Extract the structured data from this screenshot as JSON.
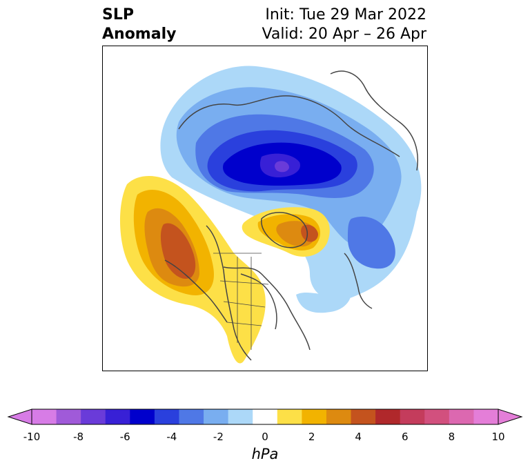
{
  "title": {
    "left_line1": "SLP",
    "left_line2": "Anomaly",
    "init": "Init: Tue 29 Mar 2022",
    "valid": "Valid: 20 Apr – 26 Apr"
  },
  "colorbar": {
    "units": "hPa",
    "tick_labels": [
      "-10",
      "-8",
      "-6",
      "-4",
      "-2",
      "0",
      "2",
      "4",
      "6",
      "8",
      "10"
    ],
    "colors": [
      "#d77ce6",
      "#a05ad9",
      "#6a3bd9",
      "#3820d6",
      "#0000cc",
      "#2a40dd",
      "#4f78e6",
      "#79aef0",
      "#acd8f8",
      "#ffffff",
      "#fde047",
      "#f2b300",
      "#dd8a10",
      "#c4531e",
      "#b0282b",
      "#c43c5c",
      "#d2507e",
      "#dc68b0",
      "#e47ed8"
    ]
  },
  "map": {
    "projection": "north polar stereographic",
    "variable": "sea level pressure anomaly",
    "features": [
      "negative anomaly over Arctic and Siberia",
      "positive anomaly over NE Pacific and western North America",
      "positive anomaly over Greenland",
      "negative anomaly over North Atlantic"
    ]
  }
}
